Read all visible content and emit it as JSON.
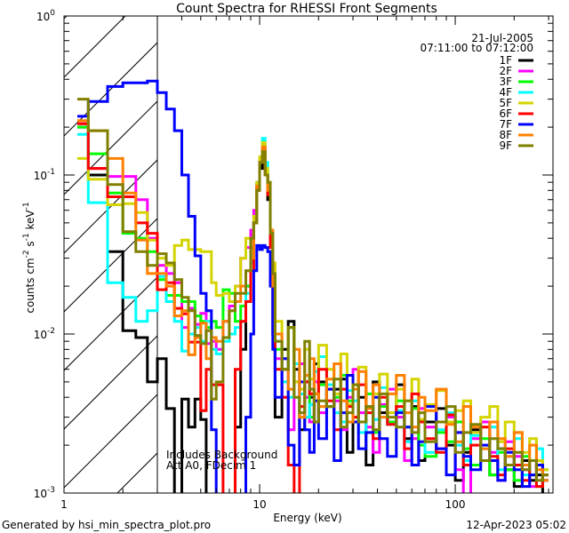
{
  "chart_data": {
    "type": "line",
    "title": "Count Spectra for RHESSI Front Segments",
    "xlabel": "Energy (keV)",
    "ylabel": {
      "base": "counts cm",
      "parts": [
        [
          "cm",
          "-2"
        ],
        [
          "s",
          "-1"
        ],
        [
          "keV",
          "-1"
        ]
      ]
    },
    "ylabel_text": "counts cm^-2 s^-1 keV^-1",
    "xscale": "log",
    "yscale": "log",
    "xlim": [
      1,
      316
    ],
    "ylim": [
      0.001,
      1
    ],
    "x_tick_labels": [
      {
        "value": 1,
        "label": "1"
      },
      {
        "value": 10,
        "label": "10"
      },
      {
        "value": 100,
        "label": "100"
      }
    ],
    "y_tick_labels": [
      {
        "value": 0.001,
        "base": "10",
        "exp": "-3"
      },
      {
        "value": 0.01,
        "base": "10",
        "exp": "-2"
      },
      {
        "value": 0.1,
        "base": "10",
        "exp": "-1"
      },
      {
        "value": 1,
        "base": "10",
        "exp": "0"
      }
    ],
    "date": "21-Jul-2005",
    "time_range": "07:11:00 to 07:12:00",
    "annotations": [
      "Includes Background",
      "Att A0, FDecim 1"
    ],
    "shaded_region": {
      "x_from": 1,
      "x_to": 3,
      "style": "hatched"
    },
    "legend_position": "top-right",
    "energy_bin_edges": [
      1.17,
      1.33,
      1.67,
      2,
      2.33,
      2.67,
      3,
      3.33,
      3.67,
      4,
      4.33,
      4.67,
      5,
      5.33,
      5.67,
      6,
      6.5,
      7,
      7.5,
      8,
      8.5,
      9,
      9.33,
      9.67,
      10,
      10.33,
      10.67,
      11,
      11.33,
      11.67,
      12,
      13,
      14,
      15,
      16,
      17,
      18,
      19,
      20,
      22,
      24,
      26,
      28,
      30,
      32,
      35,
      38,
      41,
      45,
      50,
      55,
      60,
      65,
      70,
      80,
      90,
      100,
      110,
      120,
      135,
      150,
      165,
      180,
      200,
      220,
      240,
      260,
      280,
      300
    ],
    "series": [
      {
        "name": "1F",
        "color": "#000000",
        "values": [
          0.2,
          0.1,
          0.033,
          0.0105,
          0.0095,
          0.005,
          0.007,
          0.0034,
          0,
          0.0039,
          0.0026,
          0.0039,
          0.0029,
          0,
          0,
          0,
          0,
          0,
          0.0026,
          0.008,
          0.02,
          0.035,
          0.05,
          0.08,
          0.11,
          0.14,
          0.1,
          0.07,
          0.035,
          0.01,
          0.003,
          0.008,
          0.012,
          0.006,
          0.0025,
          0.005,
          0.004,
          0.0065,
          0.005,
          0.0035,
          0.0045,
          0.0052,
          0.0018,
          0.003,
          0.004,
          0.0015,
          0.005,
          0.0032,
          0.0028,
          0.0048,
          0.0022,
          0.0035,
          0.0016,
          0.0028,
          0.0034,
          0.002,
          0.0012,
          0.0018,
          0.0025,
          0.0016,
          0.0013,
          0.0019,
          0.0014,
          0.0011,
          0.0016,
          0.0012,
          0.0013,
          0
        ]
      },
      {
        "name": "2F",
        "color": "#ff00ff",
        "values": [
          0.21,
          0.11,
          0.098,
          0.098,
          0.07,
          0.04,
          0.027,
          0.024,
          0.021,
          0.011,
          0.0145,
          0.0115,
          0.0135,
          0.0087,
          0.009,
          0.008,
          0.012,
          0.015,
          0.02,
          0.03,
          0.035,
          0.045,
          0.06,
          0.09,
          0.12,
          0.15,
          0.1,
          0.08,
          0.04,
          0.02,
          0.007,
          0.004,
          0.0025,
          0.005,
          0.0065,
          0.004,
          0.0028,
          0.005,
          0.0032,
          0.0045,
          0.0038,
          0.0025,
          0.004,
          0.006,
          0.0032,
          0.0026,
          0.0018,
          0.0036,
          0.0045,
          0.003,
          0.0016,
          0.0022,
          0.0034,
          0.0026,
          0.0019,
          0.003,
          0.0014,
          0,
          0.0022,
          0.0028,
          0.0018,
          0.0012,
          0.0021,
          0.0017,
          0.0014,
          0.0011,
          0.0016,
          0.0013
        ]
      },
      {
        "name": "3F",
        "color": "#00ff00",
        "values": [
          0.2,
          0.136,
          0.077,
          0.043,
          0.04,
          0.033,
          0.022,
          0.0175,
          0.0175,
          0.016,
          0.016,
          0.013,
          0.012,
          0.011,
          0.012,
          0.011,
          0.019,
          0.018,
          0.012,
          0.015,
          0.02,
          0.03,
          0.05,
          0.085,
          0.12,
          0.15,
          0.11,
          0.08,
          0.04,
          0.022,
          0.008,
          0.006,
          0.011,
          0.005,
          0.0035,
          0.0055,
          0.003,
          0.0042,
          0.0048,
          0.0035,
          0.004,
          0.0055,
          0.0038,
          0.003,
          0.0028,
          0.0042,
          0.0024,
          0.0035,
          0.0028,
          0.0038,
          0.0026,
          0.0034,
          0.002,
          0.0017,
          0.0024,
          0.0021,
          0.0028,
          0.0019,
          0.0015,
          0.0022,
          0.0013,
          0.0018,
          0.0014,
          0.0012,
          0.0017,
          0.0013,
          0.0011,
          0.0014
        ]
      },
      {
        "name": "4F",
        "color": "#00ffff",
        "values": [
          0.18,
          0.067,
          0.021,
          0.017,
          0.012,
          0.014,
          0.023,
          0.016,
          0.012,
          0.0078,
          0.01,
          0.011,
          0.009,
          0.012,
          0.008,
          0.0075,
          0.009,
          0.01,
          0.011,
          0.012,
          0.018,
          0.028,
          0.05,
          0.09,
          0.13,
          0.17,
          0.12,
          0.085,
          0.04,
          0.02,
          0.009,
          0.005,
          0.004,
          0.0065,
          0.0042,
          0.003,
          0.0036,
          0.0058,
          0.0072,
          0.0048,
          0.0032,
          0.0028,
          0.0044,
          0.0038,
          0.0024,
          0.0035,
          0.0029,
          0.0046,
          0.0027,
          0.0033,
          0.0021,
          0.0038,
          0.0028,
          0.0018,
          0.0025,
          0.0032,
          0.002,
          0.0016,
          0.0023,
          0.0019,
          0.0026,
          0.0014,
          0.0017,
          0.0022,
          0.0013,
          0.0016,
          0.0019,
          0.0012
        ]
      },
      {
        "name": "5F",
        "color": "#d4d400",
        "values": [
          0.127,
          0.094,
          0.065,
          0.066,
          0.058,
          0.039,
          0.03,
          0.027,
          0.036,
          0.039,
          0.034,
          0.034,
          0.033,
          0.033,
          0.021,
          0.0175,
          0.018,
          0.016,
          0.02,
          0.03,
          0.04,
          0.03,
          0.055,
          0.09,
          0.13,
          0.16,
          0.11,
          0.09,
          0.045,
          0.028,
          0.012,
          0.007,
          0.011,
          0.005,
          0.0045,
          0.008,
          0.0052,
          0.0038,
          0.0085,
          0.006,
          0.0042,
          0.0075,
          0.0036,
          0.0048,
          0.0062,
          0.0035,
          0.0042,
          0.0056,
          0.0032,
          0.0045,
          0.0038,
          0.0052,
          0.0029,
          0.0036,
          0.0044,
          0.0028,
          0.0033,
          0.0038,
          0.0024,
          0.003,
          0.0035,
          0.0021,
          0.0028,
          0.0024,
          0.0018,
          0.0022,
          0.0016,
          0.0014
        ]
      },
      {
        "name": "6F",
        "color": "#ff0000",
        "values": [
          0.21,
          0.11,
          0.073,
          0.073,
          0.05,
          0.043,
          0.019,
          0.021,
          0.0145,
          0.0134,
          0.0089,
          0.0089,
          0.0033,
          0.006,
          0.0048,
          0.0048,
          0,
          0,
          0.006,
          0.012,
          0.016,
          0.025,
          0.05,
          0.085,
          0.12,
          0.145,
          0.1,
          0.075,
          0.035,
          0.02,
          0.006,
          0.004,
          0.0015,
          0,
          0.0035,
          0.005,
          0.0042,
          0.0028,
          0.006,
          0.0038,
          0.0025,
          0.0045,
          0.0035,
          0.003,
          0.0048,
          0.0032,
          0.0022,
          0.004,
          0.0027,
          0.0035,
          0.0019,
          0.0042,
          0.0028,
          0.0022,
          0.0018,
          0.0031,
          0.0024,
          0.0015,
          0.002,
          0.0026,
          0.0017,
          0.0013,
          0.0019,
          0.0015,
          0.0012,
          0.0016,
          0.0011,
          0.0013
        ]
      },
      {
        "name": "7F",
        "color": "#0000ff",
        "values": [
          0.234,
          0.29,
          0.36,
          0.38,
          0.38,
          0.39,
          0.33,
          0.26,
          0.19,
          0.1,
          0.055,
          0.031,
          0.018,
          0.014,
          0.0025,
          0,
          0,
          0,
          0,
          0,
          0.003,
          0.01,
          0.025,
          0.036,
          0.034,
          0.036,
          0.035,
          0.033,
          0.02,
          0.008,
          0.004,
          0.007,
          0.002,
          0.0015,
          0.005,
          0.0025,
          0.0018,
          0.0038,
          0.0022,
          0.0045,
          0.0016,
          0.0032,
          0.0055,
          0.0028,
          0.0019,
          0.0024,
          0.004,
          0.0022,
          0.0017,
          0.0032,
          0.0026,
          0.0015,
          0.0021,
          0.0035,
          0.0019,
          0.0013,
          0.0024,
          0.0017,
          0.0014,
          0.002,
          0.0016,
          0.0012,
          0.0018,
          0.0014,
          0.0011,
          0.0013,
          0.0015,
          0.0012
        ]
      },
      {
        "name": "8F",
        "color": "#ff8000",
        "values": [
          0.22,
          0.19,
          0.127,
          0.077,
          0.039,
          0.024,
          0.024,
          0.02,
          0.013,
          0.014,
          0.0074,
          0.0095,
          0.0117,
          0.007,
          0.0095,
          0.009,
          0.012,
          0.014,
          0.016,
          0.02,
          0.025,
          0.03,
          0.05,
          0.085,
          0.12,
          0.15,
          0.1,
          0.08,
          0.045,
          0.02,
          0.01,
          0.006,
          0.0045,
          0.008,
          0.003,
          0.0055,
          0.007,
          0.0042,
          0.0035,
          0.0052,
          0.0065,
          0.0038,
          0.0028,
          0.0045,
          0.0058,
          0.0034,
          0.0048,
          0.003,
          0.0042,
          0.0055,
          0.0032,
          0.0026,
          0.004,
          0.0033,
          0.0045,
          0.0027,
          0.0021,
          0.0035,
          0.0026,
          0.0019,
          0.0028,
          0.0022,
          0.0017,
          0.0024,
          0.0015,
          0.002,
          0.0014,
          0.0012
        ]
      },
      {
        "name": "9F",
        "color": "#808000",
        "values": [
          0.3,
          0.19,
          0.087,
          0.044,
          0.033,
          0.027,
          0.032,
          0.028,
          0.022,
          0.017,
          0.014,
          0.0098,
          0.0087,
          0.0105,
          0.0039,
          0.005,
          0.0095,
          0.014,
          0.018,
          0.018,
          0.025,
          0.04,
          0.05,
          0.08,
          0.12,
          0.14,
          0.1,
          0.09,
          0.043,
          0.024,
          0.009,
          0.006,
          0.011,
          0.004,
          0.0032,
          0.009,
          0.0045,
          0.0028,
          0.0038,
          0.0035,
          0.0052,
          0.0026,
          0.0032,
          0.0048,
          0.0028,
          0.0035,
          0.0025,
          0.0042,
          0.003,
          0.0026,
          0.0038,
          0.0024,
          0.0032,
          0.0021,
          0.0028,
          0.0035,
          0.0018,
          0.0024,
          0.0027,
          0.0016,
          0.0022,
          0.0019,
          0.0015,
          0.0018,
          0.0014,
          0.0016,
          0.0012,
          0.0013
        ]
      }
    ]
  },
  "footer": {
    "generated_by": "Generated by hsi_min_spectra_plot.pro",
    "timestamp": "12-Apr-2023 05:02"
  }
}
